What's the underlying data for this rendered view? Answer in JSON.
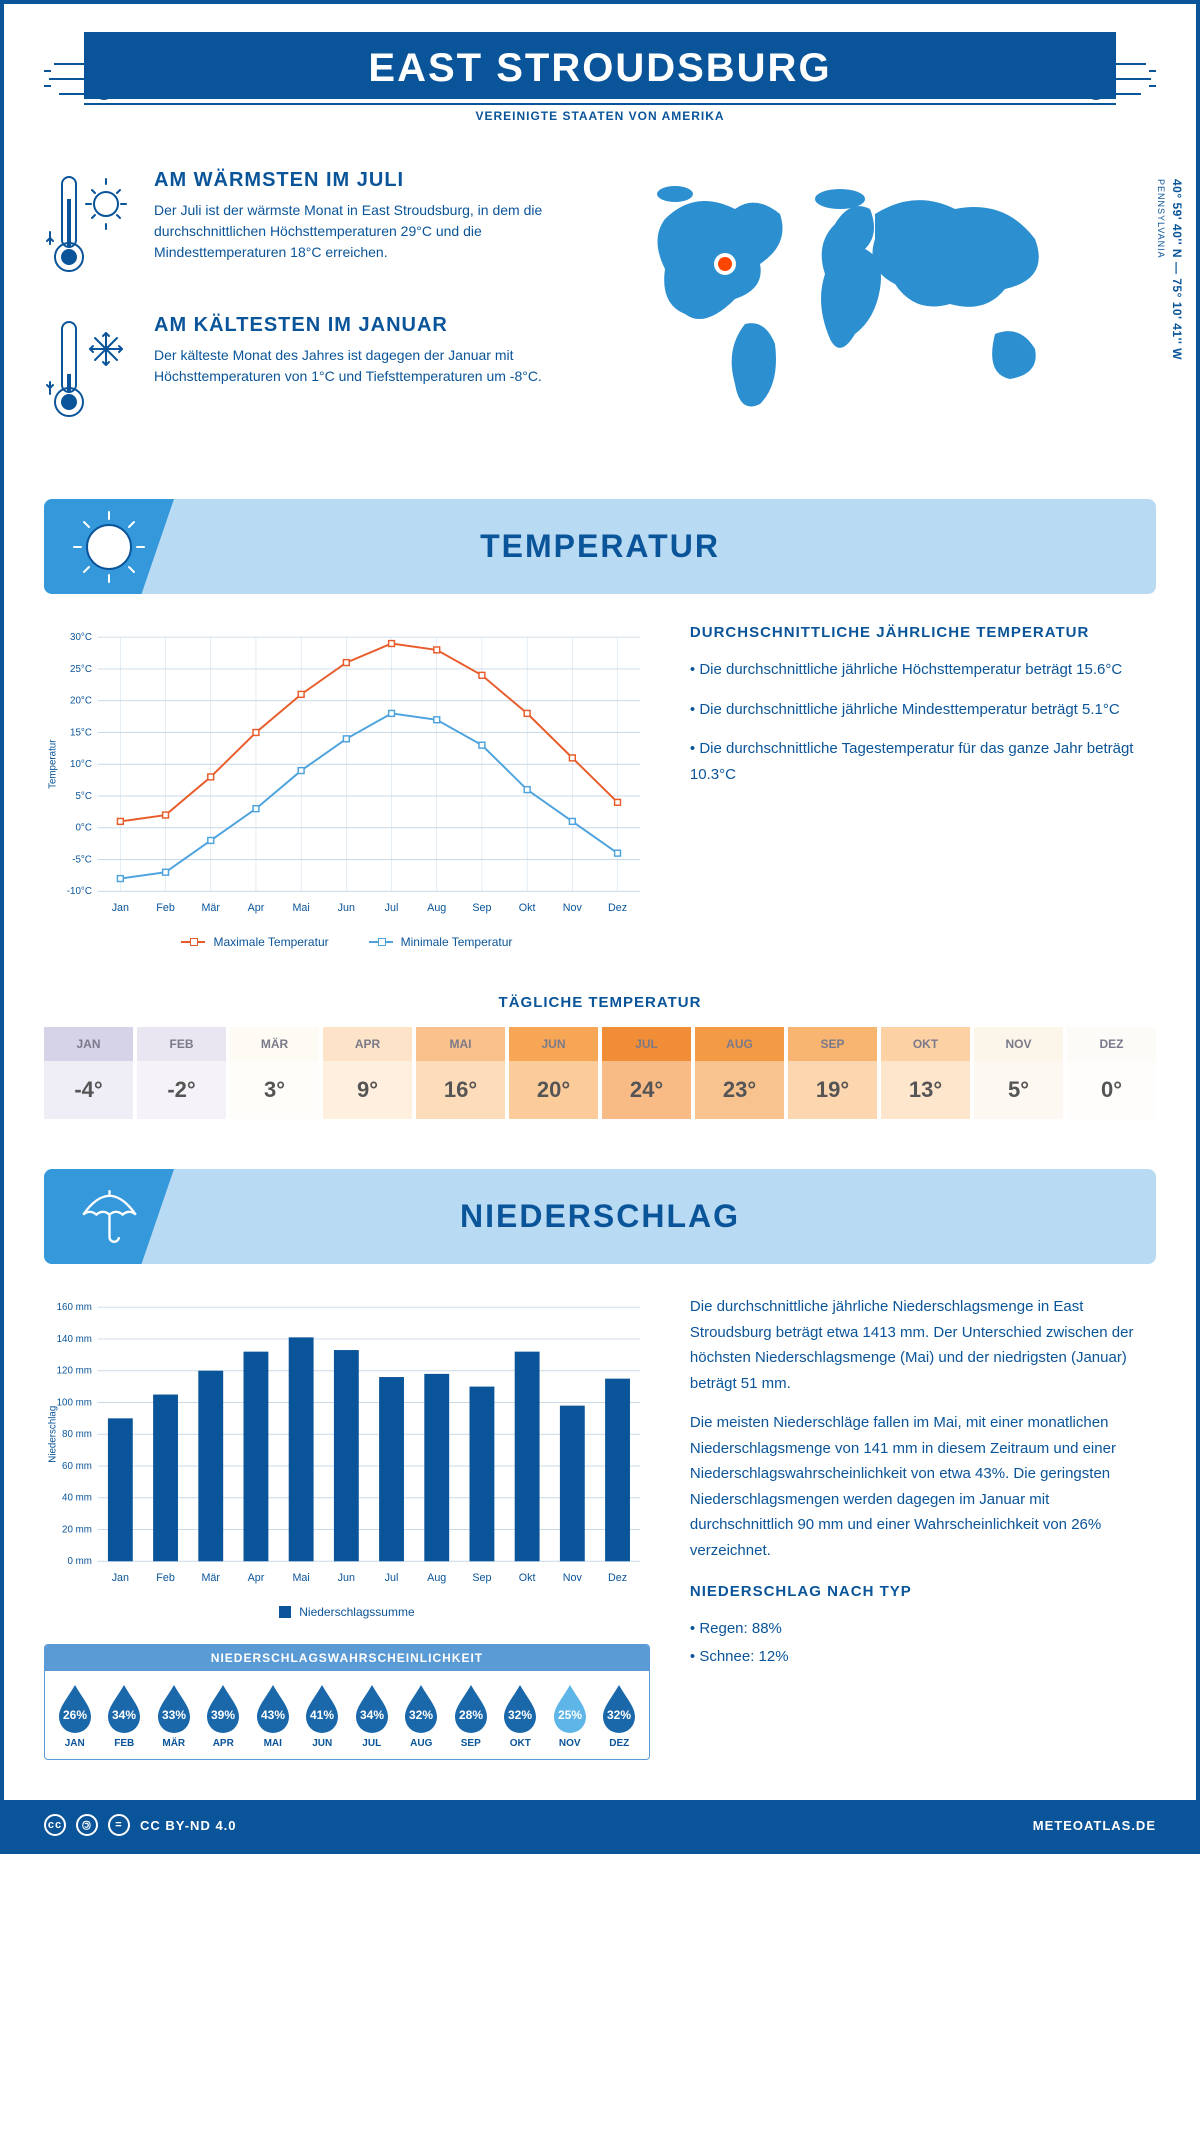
{
  "header": {
    "title": "EAST STROUDSBURG",
    "subtitle": "VEREINIGTE STAATEN VON AMERIKA"
  },
  "location": {
    "coords": "40° 59' 40'' N — 75° 10' 41'' W",
    "state": "PENNSYLVANIA",
    "marker_color": "#ff4500"
  },
  "facts": {
    "warm_title": "AM WÄRMSTEN IM JULI",
    "warm_text": "Der Juli ist der wärmste Monat in East Stroudsburg, in dem die durchschnittlichen Höchsttemperaturen 29°C und die Mindesttemperaturen 18°C erreichen.",
    "cold_title": "AM KÄLTESTEN IM JANUAR",
    "cold_text": "Der kälteste Monat des Jahres ist dagegen der Januar mit Höchsttemperaturen von 1°C und Tiefsttemperaturen um -8°C."
  },
  "sections": {
    "temperature_title": "TEMPERATUR",
    "precipitation_title": "NIEDERSCHLAG"
  },
  "temp_chart": {
    "type": "line",
    "months": [
      "Jan",
      "Feb",
      "Mär",
      "Apr",
      "Mai",
      "Jun",
      "Jul",
      "Aug",
      "Sep",
      "Okt",
      "Nov",
      "Dez"
    ],
    "max_series": [
      1,
      2,
      8,
      15,
      21,
      26,
      29,
      28,
      24,
      18,
      11,
      4
    ],
    "min_series": [
      -8,
      -7,
      -2,
      3,
      9,
      14,
      18,
      17,
      13,
      6,
      1,
      -4
    ],
    "max_color": "#e85c2b",
    "min_color": "#4da3dd",
    "ylim": [
      -10,
      30
    ],
    "yticks": [
      -10,
      -5,
      0,
      5,
      10,
      15,
      20,
      25,
      30
    ],
    "ytick_labels": [
      "-10°C",
      "-5°C",
      "0°C",
      "5°C",
      "10°C",
      "15°C",
      "20°C",
      "25°C",
      "30°C"
    ],
    "y_axis_title": "Temperatur",
    "grid_color": "#c9d9e8",
    "legend_max": "Maximale Temperatur",
    "legend_min": "Minimale Temperatur"
  },
  "temp_info": {
    "heading": "DURCHSCHNITTLICHE JÄHRLICHE TEMPERATUR",
    "line1": "• Die durchschnittliche jährliche Höchsttemperatur beträgt 15.6°C",
    "line2": "• Die durchschnittliche jährliche Mindesttemperatur beträgt 5.1°C",
    "line3": "• Die durchschnittliche Tagestemperatur für das ganze Jahr beträgt 10.3°C"
  },
  "daily": {
    "title": "TÄGLICHE TEMPERATUR",
    "months": [
      "JAN",
      "FEB",
      "MÄR",
      "APR",
      "MAI",
      "JUN",
      "JUL",
      "AUG",
      "SEP",
      "OKT",
      "NOV",
      "DEZ"
    ],
    "values": [
      "-4°",
      "-2°",
      "3°",
      "9°",
      "16°",
      "20°",
      "24°",
      "23°",
      "19°",
      "13°",
      "5°",
      "0°"
    ],
    "head_colors": [
      "#d6d2e8",
      "#e9e6f2",
      "#fefaf4",
      "#fde4c8",
      "#fbc18c",
      "#f7a656",
      "#f18d36",
      "#f39a44",
      "#f8b572",
      "#fcd2a4",
      "#fcf5ea",
      "#fdfbf8"
    ],
    "cell_colors": [
      "#efedf5",
      "#f5f3f9",
      "#fffdf9",
      "#feefde",
      "#fddcba",
      "#fbcb9a",
      "#f8bb86",
      "#f9c390",
      "#fcd6ae",
      "#fde6cb",
      "#fdf9f2",
      "#fefdfb"
    ]
  },
  "precip_chart": {
    "type": "bar",
    "months": [
      "Jan",
      "Feb",
      "Mär",
      "Apr",
      "Mai",
      "Jun",
      "Jul",
      "Aug",
      "Sep",
      "Okt",
      "Nov",
      "Dez"
    ],
    "values": [
      90,
      105,
      120,
      132,
      141,
      133,
      116,
      118,
      110,
      132,
      98,
      115
    ],
    "bar_color": "#0a5499",
    "ylim": [
      0,
      160
    ],
    "yticks": [
      0,
      20,
      40,
      60,
      80,
      100,
      120,
      140,
      160
    ],
    "ytick_labels": [
      "0 mm",
      "20 mm",
      "40 mm",
      "60 mm",
      "80 mm",
      "100 mm",
      "120 mm",
      "140 mm",
      "160 mm"
    ],
    "y_axis_title": "Niederschlag",
    "grid_color": "#c9d9e8",
    "legend": "Niederschlagssumme"
  },
  "precip_info": {
    "para1": "Die durchschnittliche jährliche Niederschlagsmenge in East Stroudsburg beträgt etwa 1413 mm. Der Unterschied zwischen der höchsten Niederschlagsmenge (Mai) und der niedrigsten (Januar) beträgt 51 mm.",
    "para2": "Die meisten Niederschläge fallen im Mai, mit einer monatlichen Niederschlagsmenge von 141 mm in diesem Zeitraum und einer Niederschlagswahrscheinlichkeit von etwa 43%. Die geringsten Niederschlagsmengen werden dagegen im Januar mit durchschnittlich 90 mm und einer Wahrscheinlichkeit von 26% verzeichnet.",
    "type_heading": "NIEDERSCHLAG NACH TYP",
    "type_rain": "• Regen: 88%",
    "type_snow": "• Schnee: 12%"
  },
  "probability": {
    "heading": "NIEDERSCHLAGSWAHRSCHEINLICHKEIT",
    "months": [
      "JAN",
      "FEB",
      "MÄR",
      "APR",
      "MAI",
      "JUN",
      "JUL",
      "AUG",
      "SEP",
      "OKT",
      "NOV",
      "DEZ"
    ],
    "values": [
      "26%",
      "34%",
      "33%",
      "39%",
      "43%",
      "41%",
      "34%",
      "32%",
      "28%",
      "32%",
      "25%",
      "32%"
    ],
    "drop_colors": [
      "#1a68aa",
      "#1a68aa",
      "#1a68aa",
      "#1a68aa",
      "#1a68aa",
      "#1a68aa",
      "#1a68aa",
      "#1a68aa",
      "#1a68aa",
      "#1a68aa",
      "#5eb5e8",
      "#1a68aa"
    ]
  },
  "footer": {
    "license": "CC BY-ND 4.0",
    "site": "METEOATLAS.DE"
  },
  "colors": {
    "primary": "#0a5499",
    "banner_bg": "#b8daf2",
    "banner_accent": "#3498db",
    "map_fill": "#2c8fd0"
  }
}
